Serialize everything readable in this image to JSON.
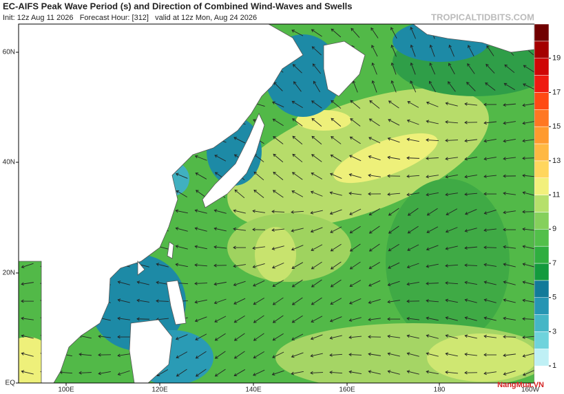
{
  "header": {
    "title": "EC-AIFS Peak Wave Period (s) and Direction of Combined Wind-Waves and Swells",
    "subtitle": "Init: 12z Aug 11 2026   Forecast Hour: [312]   valid at 12z Mon, Aug 24 2026",
    "watermark": "TROPICALTIDBITS.COM"
  },
  "map": {
    "lat_labels": [
      "60N",
      "40N",
      "20N",
      "EQ"
    ],
    "lon_labels": [
      "100E",
      "120E",
      "140E",
      "160E",
      "180",
      "160W"
    ]
  },
  "colorbar": {
    "ticks": [
      1,
      3,
      5,
      7,
      9,
      11,
      13,
      15,
      17,
      19
    ]
  },
  "logo": {
    "text": "NangMua.VN"
  }
}
